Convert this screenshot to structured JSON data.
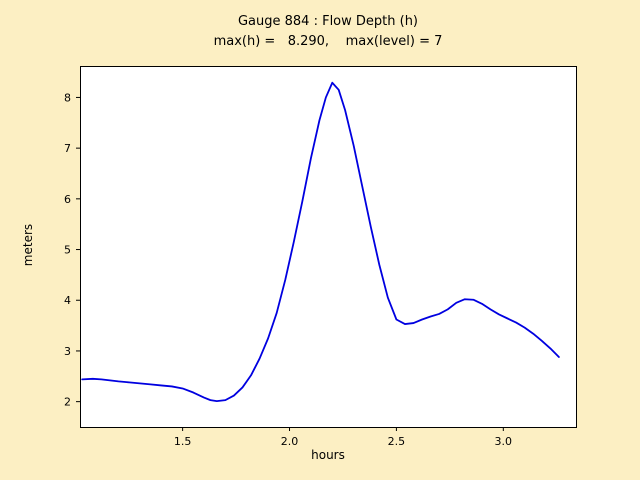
{
  "figure": {
    "title_line1": "Gauge 884 : Flow Depth (h)",
    "title_line2": "max(h) =   8.290,    max(level) = 7",
    "xlabel": "hours",
    "ylabel": "meters",
    "background_color": "#fcefc3",
    "plot_background_color": "#ffffff",
    "line_color": "#0000e0"
  },
  "chart_data": {
    "type": "line",
    "title": "Gauge 884 : Flow Depth (h)",
    "subtitle": "max(h) =   8.290,    max(level) = 7",
    "xlabel": "hours",
    "ylabel": "meters",
    "xlim": [
      1.02,
      3.34
    ],
    "ylim": [
      1.5,
      8.62
    ],
    "xticks": [
      1.5,
      2.0,
      2.5,
      3.0
    ],
    "xtick_labels": [
      "1.5",
      "2.0",
      "2.5",
      "3.0"
    ],
    "yticks": [
      2,
      3,
      4,
      5,
      6,
      7,
      8
    ],
    "ytick_labels": [
      "2",
      "3",
      "4",
      "5",
      "6",
      "7",
      "8"
    ],
    "grid": false,
    "legend": null,
    "annotations": {
      "max_h": 8.29,
      "max_level": 7
    },
    "series": [
      {
        "name": "flow depth h",
        "color": "#0000e0",
        "x": [
          1.03,
          1.08,
          1.12,
          1.16,
          1.2,
          1.25,
          1.3,
          1.35,
          1.4,
          1.45,
          1.5,
          1.55,
          1.6,
          1.63,
          1.66,
          1.7,
          1.74,
          1.78,
          1.82,
          1.86,
          1.9,
          1.94,
          1.98,
          2.02,
          2.06,
          2.1,
          2.14,
          2.17,
          2.2,
          2.23,
          2.26,
          2.3,
          2.34,
          2.38,
          2.42,
          2.46,
          2.5,
          2.54,
          2.58,
          2.62,
          2.66,
          2.7,
          2.74,
          2.78,
          2.82,
          2.86,
          2.9,
          2.94,
          2.98,
          3.02,
          3.06,
          3.1,
          3.14,
          3.18,
          3.22,
          3.26
        ],
        "y": [
          2.44,
          2.45,
          2.44,
          2.42,
          2.4,
          2.38,
          2.36,
          2.34,
          2.32,
          2.3,
          2.26,
          2.18,
          2.08,
          2.03,
          2.01,
          2.03,
          2.12,
          2.28,
          2.52,
          2.85,
          3.25,
          3.75,
          4.4,
          5.15,
          5.95,
          6.8,
          7.55,
          8.0,
          8.29,
          8.15,
          7.75,
          7.05,
          6.25,
          5.45,
          4.7,
          4.05,
          3.62,
          3.53,
          3.55,
          3.62,
          3.68,
          3.73,
          3.82,
          3.95,
          4.02,
          4.01,
          3.93,
          3.82,
          3.72,
          3.64,
          3.56,
          3.46,
          3.34,
          3.2,
          3.05,
          2.88
        ]
      }
    ]
  }
}
